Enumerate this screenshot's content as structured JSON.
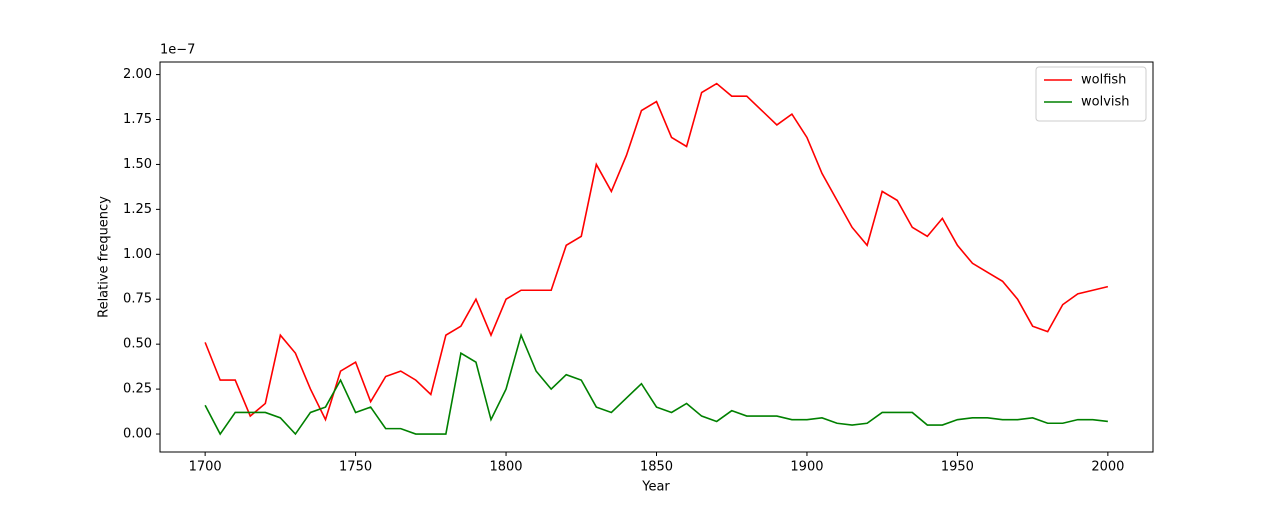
{
  "chart_data": {
    "type": "line",
    "x_label": "Year",
    "y_label": "Relative frequency",
    "y_offset_label": "1e−7",
    "x": [
      1700,
      1705,
      1710,
      1715,
      1720,
      1725,
      1730,
      1735,
      1740,
      1745,
      1750,
      1755,
      1760,
      1765,
      1770,
      1775,
      1780,
      1785,
      1790,
      1795,
      1800,
      1805,
      1810,
      1815,
      1820,
      1825,
      1830,
      1835,
      1840,
      1845,
      1850,
      1855,
      1860,
      1865,
      1870,
      1875,
      1880,
      1885,
      1890,
      1895,
      1900,
      1905,
      1910,
      1915,
      1920,
      1925,
      1930,
      1935,
      1940,
      1945,
      1950,
      1955,
      1960,
      1965,
      1970,
      1975,
      1980,
      1985,
      1990,
      1995,
      2000
    ],
    "series": [
      {
        "name": "wolfish",
        "color": "#ff0000",
        "values": [
          0.51,
          0.3,
          0.3,
          0.1,
          0.17,
          0.55,
          0.45,
          0.25,
          0.08,
          0.35,
          0.4,
          0.18,
          0.32,
          0.35,
          0.3,
          0.22,
          0.55,
          0.6,
          0.75,
          0.55,
          0.75,
          0.8,
          0.8,
          0.8,
          1.05,
          1.1,
          1.5,
          1.35,
          1.55,
          1.8,
          1.85,
          1.65,
          1.6,
          1.9,
          1.95,
          1.88,
          1.88,
          1.8,
          1.72,
          1.78,
          1.65,
          1.45,
          1.3,
          1.15,
          1.05,
          1.35,
          1.3,
          1.15,
          1.1,
          1.2,
          1.05,
          0.95,
          0.9,
          0.85,
          0.75,
          0.6,
          0.57,
          0.72,
          0.78,
          0.8,
          0.82
        ]
      },
      {
        "name": "wolvish",
        "color": "#008000",
        "values": [
          0.16,
          0.0,
          0.12,
          0.12,
          0.12,
          0.09,
          0.0,
          0.12,
          0.15,
          0.3,
          0.12,
          0.15,
          0.03,
          0.03,
          0.0,
          0.0,
          0.0,
          0.45,
          0.4,
          0.08,
          0.25,
          0.55,
          0.35,
          0.25,
          0.33,
          0.3,
          0.15,
          0.12,
          0.2,
          0.28,
          0.15,
          0.12,
          0.17,
          0.1,
          0.07,
          0.13,
          0.1,
          0.1,
          0.1,
          0.08,
          0.08,
          0.09,
          0.06,
          0.05,
          0.06,
          0.12,
          0.12,
          0.12,
          0.05,
          0.05,
          0.08,
          0.09,
          0.09,
          0.08,
          0.08,
          0.09,
          0.06,
          0.06,
          0.08,
          0.08,
          0.07
        ]
      }
    ],
    "xlim": [
      1685,
      2015
    ],
    "xticks": [
      1700,
      1750,
      1800,
      1850,
      1900,
      1950,
      2000
    ],
    "ylim": [
      -0.1,
      2.07
    ],
    "yticks": [
      {
        "value": 0,
        "label": "0.00"
      },
      {
        "value": 0.25,
        "label": "0.25"
      },
      {
        "value": 0.5,
        "label": "0.50"
      },
      {
        "value": 0.75,
        "label": "0.75"
      },
      {
        "value": 1,
        "label": "1.00"
      },
      {
        "value": 1.25,
        "label": "1.25"
      },
      {
        "value": 1.5,
        "label": "1.50"
      },
      {
        "value": 1.75,
        "label": "1.75"
      },
      {
        "value": 2,
        "label": "2.00"
      }
    ],
    "legend": "upper right",
    "grid": false
  }
}
